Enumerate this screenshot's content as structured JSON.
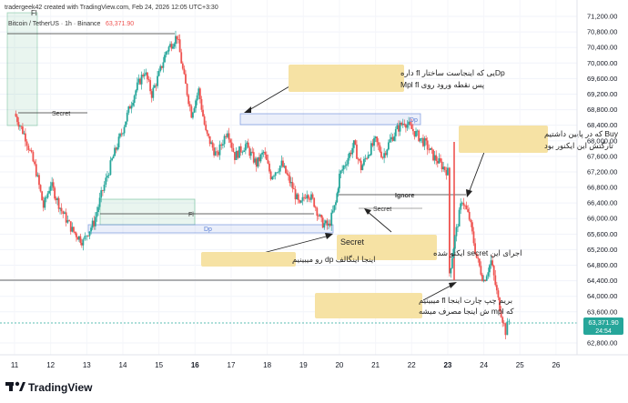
{
  "header": {
    "credit": "tradergeek42 created with TradingView.com, Feb 24, 2026 12:05 UTC+3:30",
    "symbol": "Bitcoin / TetherUS · 1h · Binance",
    "price": "63,371.90"
  },
  "brand": {
    "name": "TradingView"
  },
  "colors": {
    "up": "#26a69a",
    "down": "#ef5350",
    "zone_dp": "#5b7fd6",
    "zone_fi": "#4caf7d",
    "note_bg": "#f6e2a4",
    "price_tag": "#26a69a"
  },
  "chart_data": {
    "type": "candlestick",
    "timeframe": "1h",
    "x_ticks": [
      "11",
      "12",
      "13",
      "14",
      "15",
      "16",
      "17",
      "18",
      "19",
      "20",
      "21",
      "22",
      "23",
      "24",
      "25",
      "26"
    ],
    "bold_ticks": [
      "16",
      "23"
    ],
    "y_ticks": [
      "71,200.00",
      "70,800.00",
      "70,400.00",
      "70,000.00",
      "69,600.00",
      "69,200.00",
      "68,800.00",
      "68,400.00",
      "68,000.00",
      "67,600.00",
      "67,200.00",
      "66,800.00",
      "66,400.00",
      "66,000.00",
      "65,600.00",
      "65,200.00",
      "64,800.00",
      "64,400.00",
      "64,000.00",
      "63,600.00",
      "62,800.00"
    ],
    "y_range": [
      62600,
      71300
    ],
    "last_price": 63371.9,
    "countdown": "24:54",
    "price_path": [
      [
        11.0,
        68700
      ],
      [
        11.3,
        68100
      ],
      [
        11.6,
        67200
      ],
      [
        11.8,
        66300
      ],
      [
        12.0,
        66900
      ],
      [
        12.3,
        66200
      ],
      [
        12.6,
        65700
      ],
      [
        12.9,
        65400
      ],
      [
        13.0,
        65600
      ],
      [
        13.2,
        65900
      ],
      [
        13.4,
        66600
      ],
      [
        13.7,
        67500
      ],
      [
        14.0,
        68300
      ],
      [
        14.2,
        68900
      ],
      [
        14.4,
        69400
      ],
      [
        14.6,
        69800
      ],
      [
        14.8,
        69200
      ],
      [
        15.0,
        69700
      ],
      [
        15.2,
        70300
      ],
      [
        15.5,
        70700
      ],
      [
        15.7,
        69600
      ],
      [
        15.9,
        68700
      ],
      [
        16.1,
        69300
      ],
      [
        16.3,
        68200
      ],
      [
        16.6,
        67600
      ],
      [
        16.9,
        68300
      ],
      [
        17.1,
        67600
      ],
      [
        17.4,
        67900
      ],
      [
        17.7,
        67400
      ],
      [
        17.9,
        67700
      ],
      [
        18.1,
        67100
      ],
      [
        18.4,
        67400
      ],
      [
        18.7,
        66800
      ],
      [
        18.9,
        66300
      ],
      [
        19.1,
        66700
      ],
      [
        19.3,
        66400
      ],
      [
        19.5,
        65900
      ],
      [
        19.7,
        65800
      ],
      [
        19.9,
        66400
      ],
      [
        20.0,
        67100
      ],
      [
        20.2,
        67500
      ],
      [
        20.4,
        67900
      ],
      [
        20.6,
        67300
      ],
      [
        20.8,
        67700
      ],
      [
        21.0,
        68000
      ],
      [
        21.2,
        67600
      ],
      [
        21.4,
        68000
      ],
      [
        21.6,
        68300
      ],
      [
        21.8,
        68500
      ],
      [
        22.0,
        68300
      ],
      [
        22.2,
        68100
      ],
      [
        22.4,
        67900
      ],
      [
        22.6,
        67600
      ],
      [
        22.8,
        67400
      ],
      [
        23.0,
        67200
      ],
      [
        23.05,
        64600
      ],
      [
        23.2,
        65500
      ],
      [
        23.4,
        66500
      ],
      [
        23.6,
        66000
      ],
      [
        23.8,
        65000
      ],
      [
        24.0,
        64400
      ],
      [
        24.2,
        64900
      ],
      [
        24.4,
        63900
      ],
      [
        24.6,
        63100
      ],
      [
        24.7,
        63371.9
      ]
    ],
    "annotations": [
      {
        "text": "Fl",
        "kind": "zone-label"
      },
      {
        "text": "Secret",
        "kind": "level"
      },
      {
        "text": "Fl",
        "kind": "level"
      },
      {
        "text": "Dp",
        "kind": "zone"
      },
      {
        "text": "Dp",
        "kind": "zone"
      },
      {
        "text": "Ignore",
        "kind": "level"
      },
      {
        "text": "Secret",
        "kind": "level"
      },
      {
        "text": "Dpیی که اینجاست ساختار fl داره",
        "kind": "note"
      },
      {
        "text": "پس نقطه ورود روی Mpl fl",
        "kind": "note"
      },
      {
        "text": "Buy که در پایین داشتیم",
        "kind": "note"
      },
      {
        "text": "تارگتش این ایکنور بود",
        "kind": "note"
      },
      {
        "text": "Secret",
        "kind": "note"
      },
      {
        "text": "اجرای این secret ایکنو شده",
        "kind": "note"
      },
      {
        "text": "اینجا اینگالف dp رو میبینیم",
        "kind": "note"
      },
      {
        "text": "بریم چپ چارت اینجا fl میبینیم",
        "kind": "note"
      },
      {
        "text": "که mpl ش اینجا مصرف میشه",
        "kind": "note"
      }
    ]
  }
}
